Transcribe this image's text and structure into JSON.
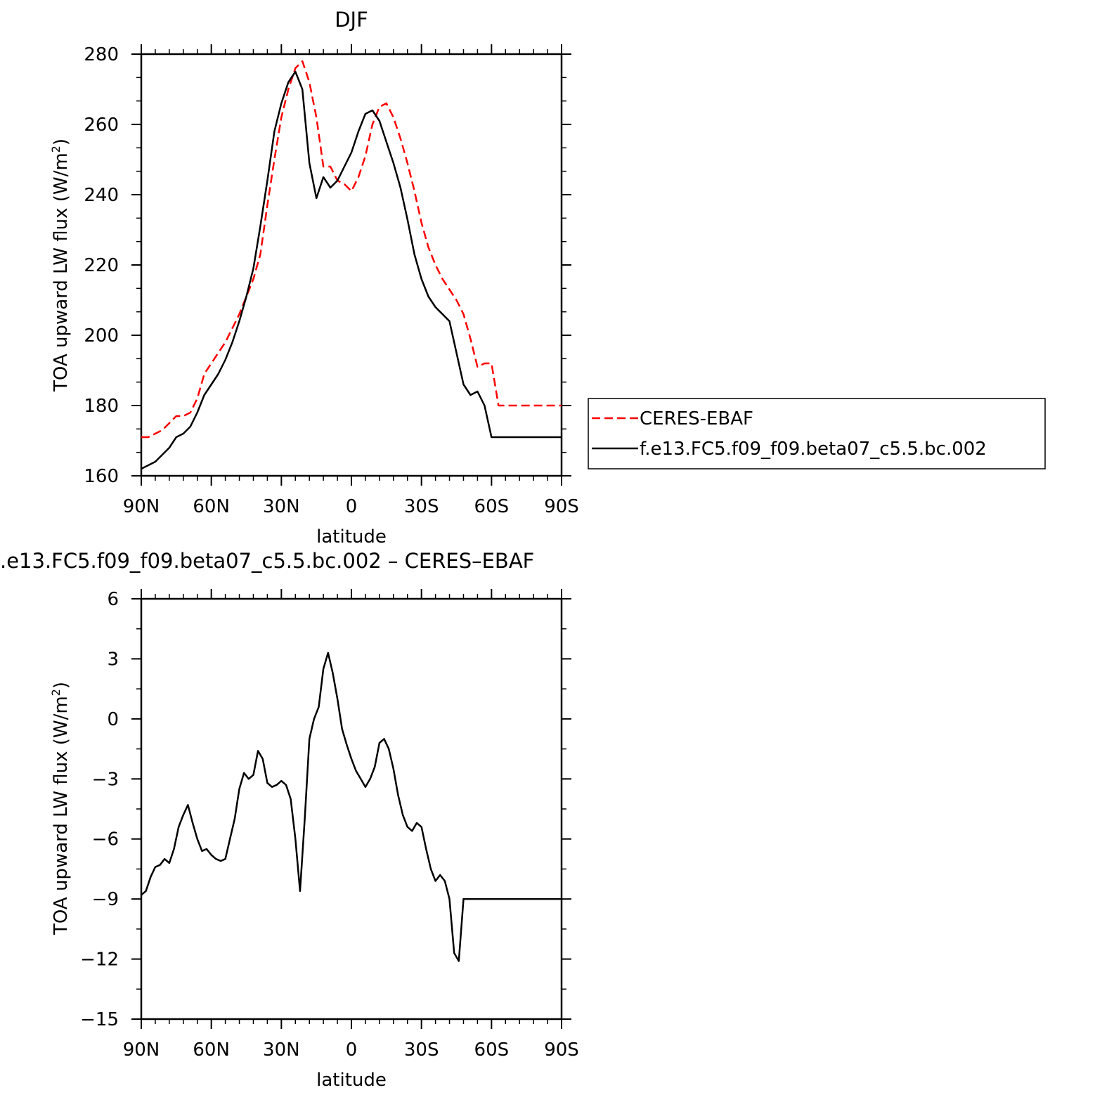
{
  "chart_data": [
    {
      "type": "line",
      "title": "DJF",
      "xlabel": "latitude",
      "ylabel": "TOA upward LW flux (W/m²)",
      "ylabel_main": "TOA upward LW flux (W/m",
      "ylabel_sup": "2",
      "ylabel_close": ")",
      "xlim": [
        90,
        -90
      ],
      "ylim": [
        160,
        280
      ],
      "x_ticks": [
        90,
        60,
        30,
        0,
        -30,
        -60,
        -90
      ],
      "x_tick_labels": [
        "90N",
        "60N",
        "30N",
        "0",
        "30S",
        "60S",
        "90S"
      ],
      "y_ticks": [
        160,
        180,
        200,
        220,
        240,
        260,
        280
      ],
      "y_tick_labels": [
        "160",
        "180",
        "200",
        "220",
        "240",
        "260",
        "280"
      ],
      "grid": false,
      "legend_position": "right",
      "series": [
        {
          "name": "CERES-EBAF",
          "color": "#ff0000",
          "dash": "dashed",
          "x": [
            90,
            87,
            84,
            81,
            78,
            75,
            72,
            69,
            66,
            63,
            60,
            57,
            54,
            51,
            48,
            45,
            42,
            39,
            36,
            33,
            30,
            27,
            24,
            21,
            18,
            15,
            12,
            9,
            6,
            3,
            0,
            -3,
            -6,
            -9,
            -12,
            -15,
            -18,
            -21,
            -24,
            -27,
            -30,
            -33,
            -36,
            -39,
            -42,
            -45,
            -48,
            -51,
            -54,
            -57,
            -60,
            -63,
            -66,
            -69,
            -72,
            -75,
            -78,
            -81,
            -84,
            -87,
            -90
          ],
          "y": [
            171,
            171,
            172,
            173,
            175,
            177,
            177,
            178,
            182,
            189,
            192,
            195,
            198,
            202,
            206,
            211,
            216,
            223,
            237,
            250,
            262,
            270,
            276,
            278,
            272,
            262,
            248,
            248,
            244,
            243,
            241,
            245,
            251,
            260,
            265,
            266,
            262,
            256,
            249,
            241,
            232,
            225,
            220,
            216,
            213,
            210,
            206,
            199,
            191,
            192,
            192,
            180,
            180,
            180,
            180,
            180,
            180,
            180,
            180,
            180,
            180
          ]
        },
        {
          "name": "f.e13.FC5.f09_f09.beta07_c5.5.bc.002",
          "color": "#000000",
          "dash": "solid",
          "x": [
            90,
            87,
            84,
            81,
            78,
            75,
            72,
            69,
            66,
            63,
            60,
            57,
            54,
            51,
            48,
            45,
            42,
            39,
            36,
            33,
            30,
            27,
            24,
            21,
            18,
            15,
            12,
            9,
            6,
            3,
            0,
            -3,
            -6,
            -9,
            -12,
            -15,
            -18,
            -21,
            -24,
            -27,
            -30,
            -33,
            -36,
            -39,
            -42,
            -45,
            -48,
            -51,
            -54,
            -57,
            -60,
            -63,
            -66,
            -69,
            -72,
            -75,
            -78,
            -81,
            -84,
            -87,
            -90
          ],
          "y": [
            162,
            163,
            164,
            166,
            168,
            171,
            172,
            174,
            178,
            183,
            186,
            189,
            193,
            198,
            204,
            211,
            219,
            231,
            244,
            258,
            266,
            272,
            275,
            270,
            249,
            239,
            245,
            242,
            244,
            248,
            252,
            258,
            263,
            264,
            261,
            255,
            249,
            242,
            233,
            223,
            216,
            211,
            208,
            206,
            204,
            195,
            186,
            183,
            184,
            180,
            171,
            171,
            171,
            171,
            171,
            171,
            171,
            171,
            171,
            171,
            171
          ]
        }
      ]
    },
    {
      "type": "line",
      "title": ".e13.FC5.f09_f09.beta07_c5.5.bc.002 – CERES–EBAF",
      "xlabel": "latitude",
      "ylabel": "TOA upward LW flux (W/m²)",
      "ylabel_main": "TOA upward LW flux (W/m",
      "ylabel_sup": "2",
      "ylabel_close": ")",
      "xlim": [
        90,
        -90
      ],
      "ylim": [
        -15,
        6
      ],
      "x_ticks": [
        90,
        60,
        30,
        0,
        -30,
        -60,
        -90
      ],
      "x_tick_labels": [
        "90N",
        "60N",
        "30N",
        "0",
        "30S",
        "60S",
        "90S"
      ],
      "y_ticks": [
        -15,
        -12,
        -9,
        -6,
        -3,
        0,
        3,
        6
      ],
      "y_tick_labels": [
        "−15",
        "−12",
        "−9",
        "−6",
        "−3",
        "0",
        "3",
        "6"
      ],
      "grid": false,
      "series": [
        {
          "color": "#000000",
          "dash": "solid",
          "x": [
            90,
            88,
            86,
            84,
            82,
            80,
            78,
            76,
            74,
            72,
            70,
            68,
            66,
            64,
            62,
            60,
            58,
            56,
            54,
            52,
            50,
            48,
            46,
            44,
            42,
            40,
            38,
            36,
            34,
            32,
            30,
            28,
            26,
            24,
            22,
            20,
            18,
            16,
            14,
            12,
            10,
            8,
            6,
            4,
            2,
            0,
            -2,
            -4,
            -6,
            -8,
            -10,
            -12,
            -14,
            -16,
            -18,
            -20,
            -22,
            -24,
            -26,
            -28,
            -30,
            -32,
            -34,
            -36,
            -38,
            -40,
            -42,
            -44,
            -46,
            -48,
            -50,
            -52,
            -54,
            -56,
            -58,
            -60,
            -62,
            -64,
            -66,
            -68,
            -70,
            -72,
            -74,
            -76,
            -78,
            -80,
            -82,
            -84,
            -86,
            -88,
            -90
          ],
          "y": [
            -8.8,
            -8.6,
            -7.9,
            -7.4,
            -7.3,
            -7.0,
            -7.2,
            -6.5,
            -5.4,
            -4.8,
            -4.3,
            -5.2,
            -6.0,
            -6.6,
            -6.5,
            -6.8,
            -7.0,
            -7.1,
            -7.0,
            -6.0,
            -5.0,
            -3.5,
            -2.7,
            -3.0,
            -2.8,
            -1.6,
            -2.0,
            -3.2,
            -3.4,
            -3.3,
            -3.1,
            -3.3,
            -4.0,
            -6.0,
            -8.6,
            -5.0,
            -1.0,
            0.0,
            0.6,
            2.5,
            3.3,
            2.3,
            1.0,
            -0.5,
            -1.3,
            -2.0,
            -2.6,
            -3.0,
            -3.4,
            -3.0,
            -2.4,
            -1.2,
            -1.0,
            -1.5,
            -2.5,
            -3.8,
            -4.8,
            -5.4,
            -5.6,
            -5.2,
            -5.4,
            -6.5,
            -7.5,
            -8.1,
            -7.8,
            -8.1,
            -9.0,
            -11.7,
            -12.1,
            -9.0,
            -9.0,
            -9.0,
            -9.0,
            -9.0,
            -9.0,
            -9.0,
            -9.0,
            -9.0,
            -9.0,
            -9.0,
            -9.0,
            -9.0,
            -9.0,
            -9.0,
            -9.0,
            -9.0,
            -9.0,
            -9.0,
            -9.0,
            -9.0,
            -9.0
          ]
        }
      ]
    }
  ]
}
